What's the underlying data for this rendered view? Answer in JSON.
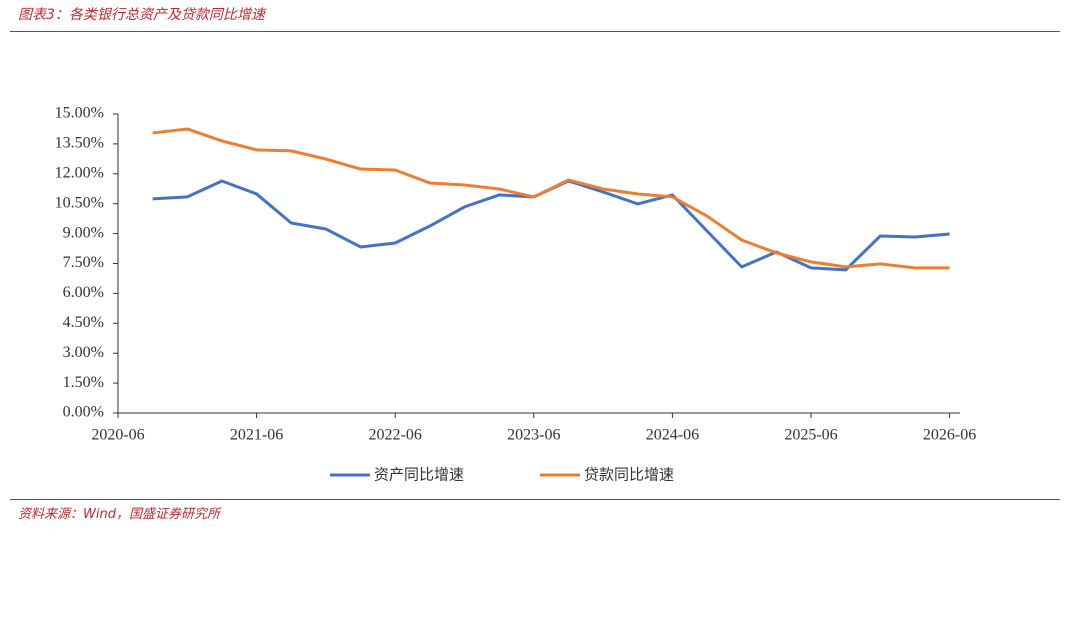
{
  "header": {
    "title": "图表3：各类银行总资产及贷款同比增速"
  },
  "footer": {
    "source": "资料来源：Wind，国盛证券研究所"
  },
  "chart_data": {
    "type": "line",
    "x": [
      "2020-09",
      "2020-12",
      "2021-03",
      "2021-06",
      "2021-09",
      "2021-12",
      "2022-03",
      "2022-06",
      "2022-09",
      "2022-12",
      "2023-03",
      "2023-06",
      "2023-09",
      "2023-12",
      "2024-03",
      "2024-06",
      "2024-09",
      "2024-12",
      "2025-03",
      "2025-06",
      "2025-09",
      "2025-12",
      "2026-03",
      "2026-06"
    ],
    "xticks": [
      "2020-06",
      "2021-06",
      "2022-06",
      "2023-06",
      "2024-06",
      "2025-06",
      "2026-06"
    ],
    "ylim": [
      0,
      15
    ],
    "yticks": [
      {
        "value": 0,
        "label": "0.00%"
      },
      {
        "value": 1.5,
        "label": "1.50%"
      },
      {
        "value": 3,
        "label": "3.00%"
      },
      {
        "value": 4.5,
        "label": "4.50%"
      },
      {
        "value": 6,
        "label": "6.00%"
      },
      {
        "value": 7.5,
        "label": "7.50%"
      },
      {
        "value": 9,
        "label": "9.00%"
      },
      {
        "value": 10.5,
        "label": "10.50%"
      },
      {
        "value": 12,
        "label": "12.00%"
      },
      {
        "value": 13.5,
        "label": "13.50%"
      },
      {
        "value": 15,
        "label": "15.00%"
      }
    ],
    "series": [
      {
        "name": "资产同比增速",
        "color": "#4472c4",
        "values": [
          10.74,
          10.84,
          11.64,
          10.99,
          9.53,
          9.23,
          8.33,
          8.53,
          9.38,
          10.34,
          10.94,
          10.84,
          11.64,
          11.09,
          10.49,
          10.94,
          9.13,
          7.33,
          8.08,
          7.28,
          7.18,
          8.88,
          8.83,
          8.98
        ]
      },
      {
        "name": "贷款同比增速",
        "color": "#ed7d31",
        "values": [
          14.05,
          14.25,
          13.65,
          13.2,
          13.15,
          12.74,
          12.24,
          12.19,
          11.54,
          11.44,
          11.24,
          10.84,
          11.69,
          11.24,
          10.99,
          10.84,
          9.88,
          8.68,
          8.03,
          7.58,
          7.33,
          7.48,
          7.28,
          7.28
        ]
      }
    ]
  }
}
